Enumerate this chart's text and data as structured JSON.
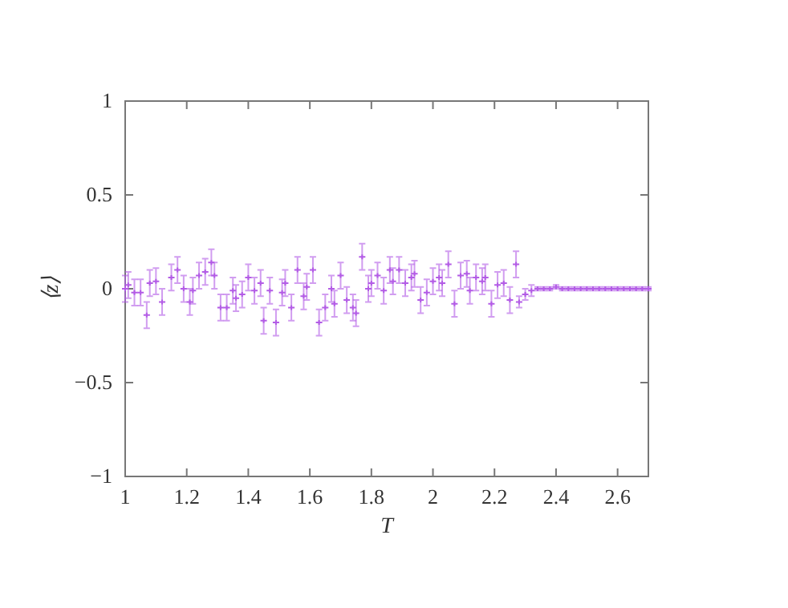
{
  "chart_data": {
    "type": "scatter",
    "xlabel": "T",
    "ylabel": "⟨z⟩",
    "xlim": [
      1,
      2.7
    ],
    "ylim": [
      -1,
      1
    ],
    "xticks": [
      1,
      1.2,
      1.4,
      1.6,
      1.8,
      2,
      2.2,
      2.4,
      2.6
    ],
    "yticks": [
      {
        "value": -1,
        "label": "−1"
      },
      {
        "value": -0.5,
        "label": "−0.5"
      },
      0,
      0.5,
      1
    ],
    "grid": false,
    "marker": "cross",
    "series": [
      {
        "color": "#b35ce6",
        "x": [
          1.0,
          1.01,
          1.03,
          1.05,
          1.07,
          1.08,
          1.1,
          1.12,
          1.15,
          1.17,
          1.19,
          1.21,
          1.22,
          1.24,
          1.26,
          1.28,
          1.29,
          1.31,
          1.33,
          1.35,
          1.36,
          1.38,
          1.4,
          1.42,
          1.44,
          1.45,
          1.47,
          1.49,
          1.51,
          1.52,
          1.54,
          1.56,
          1.58,
          1.59,
          1.61,
          1.63,
          1.65,
          1.67,
          1.68,
          1.7,
          1.72,
          1.74,
          1.75,
          1.77,
          1.79,
          1.8,
          1.82,
          1.84,
          1.86,
          1.87,
          1.89,
          1.91,
          1.93,
          1.94,
          1.96,
          1.98,
          2.0,
          2.02,
          2.03,
          2.05,
          2.07,
          2.09,
          2.11,
          2.12,
          2.14,
          2.16,
          2.17,
          2.19,
          2.21,
          2.23,
          2.25,
          2.27,
          2.28,
          2.3,
          2.32,
          2.34,
          2.36,
          2.38,
          2.4,
          2.42,
          2.44,
          2.46,
          2.48,
          2.5,
          2.52,
          2.54,
          2.56,
          2.58,
          2.6,
          2.62,
          2.64,
          2.66,
          2.68,
          2.7
        ],
        "values": [
          0.0,
          0.02,
          -0.02,
          -0.02,
          -0.14,
          0.03,
          0.04,
          -0.07,
          0.06,
          0.1,
          0.0,
          -0.07,
          -0.01,
          0.07,
          0.09,
          0.14,
          0.07,
          -0.1,
          -0.1,
          -0.01,
          -0.05,
          -0.03,
          0.06,
          -0.01,
          0.03,
          -0.17,
          -0.01,
          -0.18,
          -0.02,
          0.03,
          -0.1,
          0.1,
          -0.04,
          0.01,
          0.1,
          -0.18,
          -0.1,
          0.0,
          -0.08,
          0.07,
          -0.06,
          -0.1,
          -0.13,
          0.17,
          0.0,
          0.03,
          0.07,
          -0.01,
          0.1,
          0.04,
          0.1,
          0.03,
          0.06,
          0.08,
          -0.06,
          -0.02,
          0.04,
          0.06,
          0.03,
          0.13,
          -0.08,
          0.07,
          0.08,
          -0.01,
          0.06,
          0.04,
          0.06,
          -0.08,
          0.02,
          0.03,
          -0.06,
          0.13,
          -0.07,
          -0.03,
          -0.01,
          0.0,
          0.0,
          0.0,
          0.01,
          0.0,
          0.0,
          0.0,
          0.0,
          0.0,
          0.0,
          0.0,
          0.0,
          0.0,
          0.0,
          0.0,
          0.0,
          0.0,
          0.0,
          0.0
        ],
        "errors": [
          0.07,
          0.07,
          0.07,
          0.07,
          0.07,
          0.07,
          0.07,
          0.07,
          0.07,
          0.07,
          0.07,
          0.07,
          0.07,
          0.07,
          0.07,
          0.07,
          0.07,
          0.07,
          0.07,
          0.07,
          0.07,
          0.07,
          0.07,
          0.07,
          0.07,
          0.07,
          0.07,
          0.07,
          0.07,
          0.07,
          0.07,
          0.07,
          0.07,
          0.07,
          0.07,
          0.07,
          0.07,
          0.07,
          0.07,
          0.07,
          0.07,
          0.07,
          0.07,
          0.07,
          0.07,
          0.07,
          0.07,
          0.07,
          0.07,
          0.07,
          0.07,
          0.07,
          0.07,
          0.07,
          0.07,
          0.07,
          0.07,
          0.07,
          0.07,
          0.07,
          0.07,
          0.07,
          0.07,
          0.07,
          0.07,
          0.07,
          0.07,
          0.07,
          0.07,
          0.07,
          0.07,
          0.07,
          0.03,
          0.03,
          0.03,
          0.01,
          0.01,
          0.01,
          0.01,
          0.01,
          0.01,
          0.01,
          0.01,
          0.01,
          0.01,
          0.01,
          0.01,
          0.01,
          0.01,
          0.01,
          0.01,
          0.01,
          0.01,
          0.01
        ]
      }
    ]
  }
}
